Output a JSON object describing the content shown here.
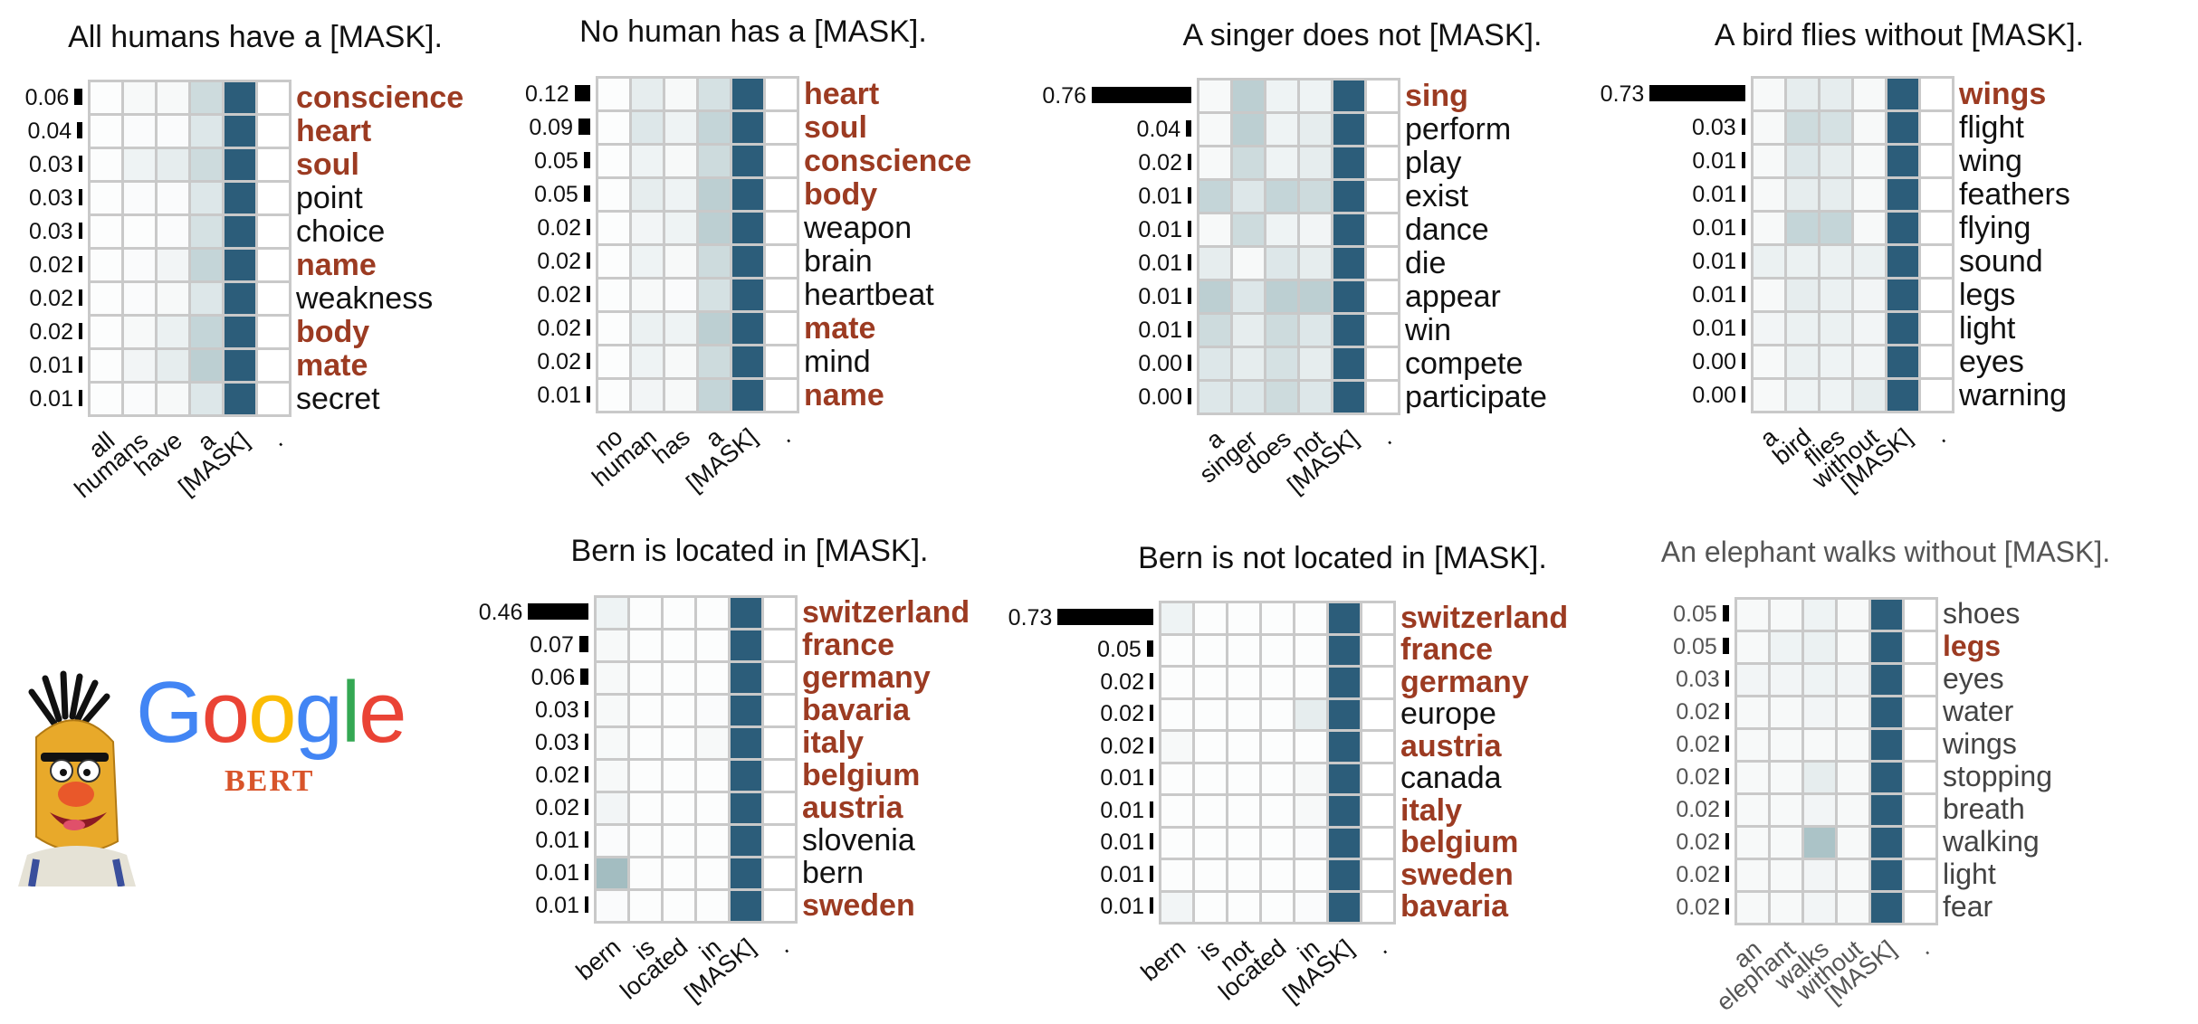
{
  "logo": {
    "google_letters": [
      {
        "ch": "G",
        "color": "#4285F4"
      },
      {
        "ch": "o",
        "color": "#EA4335"
      },
      {
        "ch": "o",
        "color": "#FBBC05"
      },
      {
        "ch": "g",
        "color": "#4285F4"
      },
      {
        "ch": "l",
        "color": "#34A853"
      },
      {
        "ch": "e",
        "color": "#EA4335"
      }
    ],
    "subtitle": "BERT",
    "mascot_icon": "bert-muppet-icon"
  },
  "colors": {
    "mask_column": "#2c5d7a",
    "highlight_word": "#9c3b22",
    "bar": "#000000",
    "cell_base": "#ffffff",
    "attention_dark": "#6f9aa0"
  },
  "panels": [
    {
      "title": "All humans have a [MASK].",
      "tokens": [
        "all",
        "humans",
        "have",
        "a",
        "[MASK]",
        "."
      ],
      "rows": [
        {
          "prob": "0.06",
          "p": 0.06,
          "word": "conscience",
          "hl": true,
          "att": [
            0.02,
            0.05,
            0.05,
            0.3,
            1,
            0
          ]
        },
        {
          "prob": "0.04",
          "p": 0.04,
          "word": "heart",
          "hl": true,
          "att": [
            0.02,
            0.03,
            0.03,
            0.2,
            1,
            0
          ]
        },
        {
          "prob": "0.03",
          "p": 0.03,
          "word": "soul",
          "hl": true,
          "att": [
            0.02,
            0.1,
            0.15,
            0.3,
            1,
            0
          ]
        },
        {
          "prob": "0.03",
          "p": 0.03,
          "word": "point",
          "hl": false,
          "att": [
            0.02,
            0.03,
            0.03,
            0.2,
            1,
            0
          ]
        },
        {
          "prob": "0.03",
          "p": 0.03,
          "word": "choice",
          "hl": false,
          "att": [
            0.02,
            0.02,
            0.03,
            0.25,
            1,
            0
          ]
        },
        {
          "prob": "0.02",
          "p": 0.02,
          "word": "name",
          "hl": true,
          "att": [
            0.02,
            0.03,
            0.08,
            0.35,
            1,
            0
          ]
        },
        {
          "prob": "0.02",
          "p": 0.02,
          "word": "weakness",
          "hl": false,
          "att": [
            0.02,
            0.03,
            0.05,
            0.2,
            1,
            0
          ]
        },
        {
          "prob": "0.02",
          "p": 0.02,
          "word": "body",
          "hl": true,
          "att": [
            0.02,
            0.05,
            0.12,
            0.35,
            1,
            0
          ]
        },
        {
          "prob": "0.01",
          "p": 0.01,
          "word": "mate",
          "hl": true,
          "att": [
            0.02,
            0.08,
            0.15,
            0.4,
            1,
            0
          ]
        },
        {
          "prob": "0.01",
          "p": 0.01,
          "word": "secret",
          "hl": false,
          "att": [
            0.02,
            0.03,
            0.05,
            0.2,
            1,
            0
          ]
        }
      ]
    },
    {
      "title": "No human has a [MASK].",
      "tokens": [
        "no",
        "human",
        "has",
        "a",
        "[MASK]",
        "."
      ],
      "rows": [
        {
          "prob": "0.12",
          "p": 0.12,
          "word": "heart",
          "hl": true,
          "att": [
            0.02,
            0.15,
            0.05,
            0.25,
            1,
            0
          ]
        },
        {
          "prob": "0.09",
          "p": 0.09,
          "word": "soul",
          "hl": true,
          "att": [
            0.02,
            0.2,
            0.1,
            0.35,
            1,
            0
          ]
        },
        {
          "prob": "0.05",
          "p": 0.05,
          "word": "conscience",
          "hl": true,
          "att": [
            0.02,
            0.1,
            0.05,
            0.3,
            1,
            0
          ]
        },
        {
          "prob": "0.05",
          "p": 0.05,
          "word": "body",
          "hl": true,
          "att": [
            0.02,
            0.15,
            0.1,
            0.4,
            1,
            0
          ]
        },
        {
          "prob": "0.02",
          "p": 0.02,
          "word": "weapon",
          "hl": false,
          "att": [
            0.02,
            0.08,
            0.1,
            0.4,
            1,
            0
          ]
        },
        {
          "prob": "0.02",
          "p": 0.02,
          "word": "brain",
          "hl": false,
          "att": [
            0.02,
            0.1,
            0.05,
            0.3,
            1,
            0
          ]
        },
        {
          "prob": "0.02",
          "p": 0.02,
          "word": "heartbeat",
          "hl": false,
          "att": [
            0.02,
            0.05,
            0.03,
            0.25,
            1,
            0
          ]
        },
        {
          "prob": "0.02",
          "p": 0.02,
          "word": "mate",
          "hl": true,
          "att": [
            0.02,
            0.12,
            0.1,
            0.4,
            1,
            0
          ]
        },
        {
          "prob": "0.02",
          "p": 0.02,
          "word": "mind",
          "hl": false,
          "att": [
            0.02,
            0.1,
            0.05,
            0.3,
            1,
            0
          ]
        },
        {
          "prob": "0.01",
          "p": 0.01,
          "word": "name",
          "hl": true,
          "att": [
            0.02,
            0.08,
            0.05,
            0.35,
            1,
            0
          ]
        }
      ]
    },
    {
      "title": "A singer does not [MASK].",
      "tokens": [
        "a",
        "singer",
        "does",
        "not",
        "[MASK]",
        "."
      ],
      "rows": [
        {
          "prob": "0.76",
          "p": 0.76,
          "word": "sing",
          "hl": true,
          "att": [
            0.05,
            0.4,
            0.1,
            0.1,
            1,
            0
          ]
        },
        {
          "prob": "0.04",
          "p": 0.04,
          "word": "perform",
          "hl": false,
          "att": [
            0.05,
            0.4,
            0.1,
            0.15,
            1,
            0
          ]
        },
        {
          "prob": "0.02",
          "p": 0.02,
          "word": "play",
          "hl": false,
          "att": [
            0.05,
            0.3,
            0.1,
            0.15,
            1,
            0
          ]
        },
        {
          "prob": "0.01",
          "p": 0.01,
          "word": "exist",
          "hl": false,
          "att": [
            0.35,
            0.2,
            0.35,
            0.3,
            1,
            0
          ]
        },
        {
          "prob": "0.01",
          "p": 0.01,
          "word": "dance",
          "hl": false,
          "att": [
            0.05,
            0.3,
            0.1,
            0.08,
            1,
            0
          ]
        },
        {
          "prob": "0.01",
          "p": 0.01,
          "word": "die",
          "hl": false,
          "att": [
            0.15,
            0.05,
            0.2,
            0.15,
            1,
            0
          ]
        },
        {
          "prob": "0.01",
          "p": 0.01,
          "word": "appear",
          "hl": false,
          "att": [
            0.4,
            0.2,
            0.4,
            0.4,
            1,
            0
          ]
        },
        {
          "prob": "0.01",
          "p": 0.01,
          "word": "win",
          "hl": false,
          "att": [
            0.3,
            0.15,
            0.3,
            0.2,
            1,
            0
          ]
        },
        {
          "prob": "0.00",
          "p": 0.0,
          "word": "compete",
          "hl": false,
          "att": [
            0.2,
            0.15,
            0.25,
            0.15,
            1,
            0
          ]
        },
        {
          "prob": "0.00",
          "p": 0.0,
          "word": "participate",
          "hl": false,
          "att": [
            0.2,
            0.2,
            0.3,
            0.2,
            1,
            0
          ]
        }
      ]
    },
    {
      "title": "A bird flies without [MASK].",
      "tokens": [
        "a",
        "bird",
        "flies",
        "without",
        "[MASK]",
        "."
      ],
      "rows": [
        {
          "prob": "0.73",
          "p": 0.73,
          "word": "wings",
          "hl": true,
          "att": [
            0.05,
            0.15,
            0.15,
            0.05,
            1,
            0
          ]
        },
        {
          "prob": "0.03",
          "p": 0.03,
          "word": "flight",
          "hl": false,
          "att": [
            0.05,
            0.3,
            0.25,
            0.05,
            1,
            0
          ]
        },
        {
          "prob": "0.01",
          "p": 0.01,
          "word": "wing",
          "hl": false,
          "att": [
            0.05,
            0.2,
            0.15,
            0.05,
            1,
            0
          ]
        },
        {
          "prob": "0.01",
          "p": 0.01,
          "word": "feathers",
          "hl": false,
          "att": [
            0.05,
            0.15,
            0.15,
            0.05,
            1,
            0
          ]
        },
        {
          "prob": "0.01",
          "p": 0.01,
          "word": "flying",
          "hl": false,
          "att": [
            0.05,
            0.35,
            0.35,
            0.05,
            1,
            0
          ]
        },
        {
          "prob": "0.01",
          "p": 0.01,
          "word": "sound",
          "hl": false,
          "att": [
            0.12,
            0.12,
            0.12,
            0.12,
            1,
            0
          ]
        },
        {
          "prob": "0.01",
          "p": 0.01,
          "word": "legs",
          "hl": false,
          "att": [
            0.05,
            0.15,
            0.12,
            0.08,
            1,
            0
          ]
        },
        {
          "prob": "0.01",
          "p": 0.01,
          "word": "light",
          "hl": false,
          "att": [
            0.08,
            0.12,
            0.12,
            0.08,
            1,
            0
          ]
        },
        {
          "prob": "0.00",
          "p": 0.0,
          "word": "eyes",
          "hl": false,
          "att": [
            0.05,
            0.12,
            0.1,
            0.08,
            1,
            0
          ]
        },
        {
          "prob": "0.00",
          "p": 0.0,
          "word": "warning",
          "hl": false,
          "att": [
            0.05,
            0.1,
            0.1,
            0.15,
            1,
            0
          ]
        }
      ]
    },
    {
      "title": "Bern is located in [MASK].",
      "tokens": [
        "bern",
        "is",
        "located",
        "in",
        "[MASK]",
        "."
      ],
      "rows": [
        {
          "prob": "0.46",
          "p": 0.46,
          "word": "switzerland",
          "hl": true,
          "att": [
            0.1,
            0.02,
            0.02,
            0.02,
            1,
            0
          ]
        },
        {
          "prob": "0.07",
          "p": 0.07,
          "word": "france",
          "hl": true,
          "att": [
            0.05,
            0.02,
            0.02,
            0.02,
            1,
            0
          ]
        },
        {
          "prob": "0.06",
          "p": 0.06,
          "word": "germany",
          "hl": true,
          "att": [
            0.05,
            0.02,
            0.02,
            0.02,
            1,
            0
          ]
        },
        {
          "prob": "0.03",
          "p": 0.03,
          "word": "bavaria",
          "hl": true,
          "att": [
            0.05,
            0.02,
            0.02,
            0.03,
            1,
            0
          ]
        },
        {
          "prob": "0.03",
          "p": 0.03,
          "word": "italy",
          "hl": true,
          "att": [
            0.05,
            0.02,
            0.02,
            0.05,
            1,
            0
          ]
        },
        {
          "prob": "0.02",
          "p": 0.02,
          "word": "belgium",
          "hl": true,
          "att": [
            0.05,
            0.02,
            0.02,
            0.02,
            1,
            0
          ]
        },
        {
          "prob": "0.02",
          "p": 0.02,
          "word": "austria",
          "hl": true,
          "att": [
            0.08,
            0.02,
            0.02,
            0.02,
            1,
            0
          ]
        },
        {
          "prob": "0.01",
          "p": 0.01,
          "word": "slovenia",
          "hl": false,
          "att": [
            0.03,
            0.02,
            0.02,
            0.02,
            1,
            0
          ]
        },
        {
          "prob": "0.01",
          "p": 0.01,
          "word": "bern",
          "hl": false,
          "att": [
            0.55,
            0.02,
            0.02,
            0.02,
            1,
            0
          ]
        },
        {
          "prob": "0.01",
          "p": 0.01,
          "word": "sweden",
          "hl": true,
          "att": [
            0.03,
            0.02,
            0.02,
            0.02,
            1,
            0
          ]
        }
      ]
    },
    {
      "title": "Bern is not located in [MASK].",
      "tokens": [
        "bern",
        "is",
        "not",
        "located",
        "in",
        "[MASK]",
        "."
      ],
      "rows": [
        {
          "prob": "0.73",
          "p": 0.73,
          "word": "switzerland",
          "hl": true,
          "att": [
            0.1,
            0.02,
            0.02,
            0.02,
            0.02,
            1,
            0
          ]
        },
        {
          "prob": "0.05",
          "p": 0.05,
          "word": "france",
          "hl": true,
          "att": [
            0.02,
            0.02,
            0.02,
            0.02,
            0.02,
            1,
            0
          ]
        },
        {
          "prob": "0.02",
          "p": 0.02,
          "word": "germany",
          "hl": true,
          "att": [
            0.02,
            0.02,
            0.02,
            0.02,
            0.02,
            1,
            0
          ]
        },
        {
          "prob": "0.02",
          "p": 0.02,
          "word": "europe",
          "hl": false,
          "att": [
            0.02,
            0.02,
            0.02,
            0.02,
            0.15,
            1,
            0
          ]
        },
        {
          "prob": "0.02",
          "p": 0.02,
          "word": "austria",
          "hl": true,
          "att": [
            0.05,
            0.02,
            0.02,
            0.02,
            0.02,
            1,
            0
          ]
        },
        {
          "prob": "0.01",
          "p": 0.01,
          "word": "canada",
          "hl": false,
          "att": [
            0.02,
            0.02,
            0.02,
            0.02,
            0.05,
            1,
            0
          ]
        },
        {
          "prob": "0.01",
          "p": 0.01,
          "word": "italy",
          "hl": true,
          "att": [
            0.02,
            0.02,
            0.02,
            0.02,
            0.05,
            1,
            0
          ]
        },
        {
          "prob": "0.01",
          "p": 0.01,
          "word": "belgium",
          "hl": true,
          "att": [
            0.02,
            0.02,
            0.02,
            0.02,
            0.03,
            1,
            0
          ]
        },
        {
          "prob": "0.01",
          "p": 0.01,
          "word": "sweden",
          "hl": true,
          "att": [
            0.02,
            0.02,
            0.02,
            0.02,
            0.02,
            1,
            0
          ]
        },
        {
          "prob": "0.01",
          "p": 0.01,
          "word": "bavaria",
          "hl": true,
          "att": [
            0.08,
            0.02,
            0.02,
            0.02,
            0.03,
            1,
            0
          ]
        }
      ]
    },
    {
      "title": "An elephant walks without [MASK].",
      "tokens": [
        "an",
        "elephant",
        "walks",
        "without",
        "[MASK]",
        "."
      ],
      "rows": [
        {
          "prob": "0.05",
          "p": 0.05,
          "word": "shoes",
          "hl": false,
          "att": [
            0.05,
            0.05,
            0.1,
            0.05,
            1,
            0
          ]
        },
        {
          "prob": "0.05",
          "p": 0.05,
          "word": "legs",
          "hl": true,
          "att": [
            0.05,
            0.1,
            0.12,
            0.05,
            1,
            0
          ]
        },
        {
          "prob": "0.03",
          "p": 0.03,
          "word": "eyes",
          "hl": false,
          "att": [
            0.08,
            0.08,
            0.1,
            0.08,
            1,
            0
          ]
        },
        {
          "prob": "0.02",
          "p": 0.02,
          "word": "water",
          "hl": false,
          "att": [
            0.05,
            0.05,
            0.08,
            0.05,
            1,
            0
          ]
        },
        {
          "prob": "0.02",
          "p": 0.02,
          "word": "wings",
          "hl": false,
          "att": [
            0.05,
            0.05,
            0.05,
            0.05,
            1,
            0
          ]
        },
        {
          "prob": "0.02",
          "p": 0.02,
          "word": "stopping",
          "hl": false,
          "att": [
            0.05,
            0.05,
            0.15,
            0.05,
            1,
            0
          ]
        },
        {
          "prob": "0.02",
          "p": 0.02,
          "word": "breath",
          "hl": false,
          "att": [
            0.05,
            0.05,
            0.08,
            0.05,
            1,
            0
          ]
        },
        {
          "prob": "0.02",
          "p": 0.02,
          "word": "walking",
          "hl": false,
          "att": [
            0.05,
            0.05,
            0.5,
            0.05,
            1,
            0
          ]
        },
        {
          "prob": "0.02",
          "p": 0.02,
          "word": "light",
          "hl": false,
          "att": [
            0.05,
            0.05,
            0.08,
            0.05,
            1,
            0
          ]
        },
        {
          "prob": "0.02",
          "p": 0.02,
          "word": "fear",
          "hl": false,
          "att": [
            0.05,
            0.05,
            0.08,
            0.05,
            1,
            0
          ]
        }
      ]
    }
  ]
}
